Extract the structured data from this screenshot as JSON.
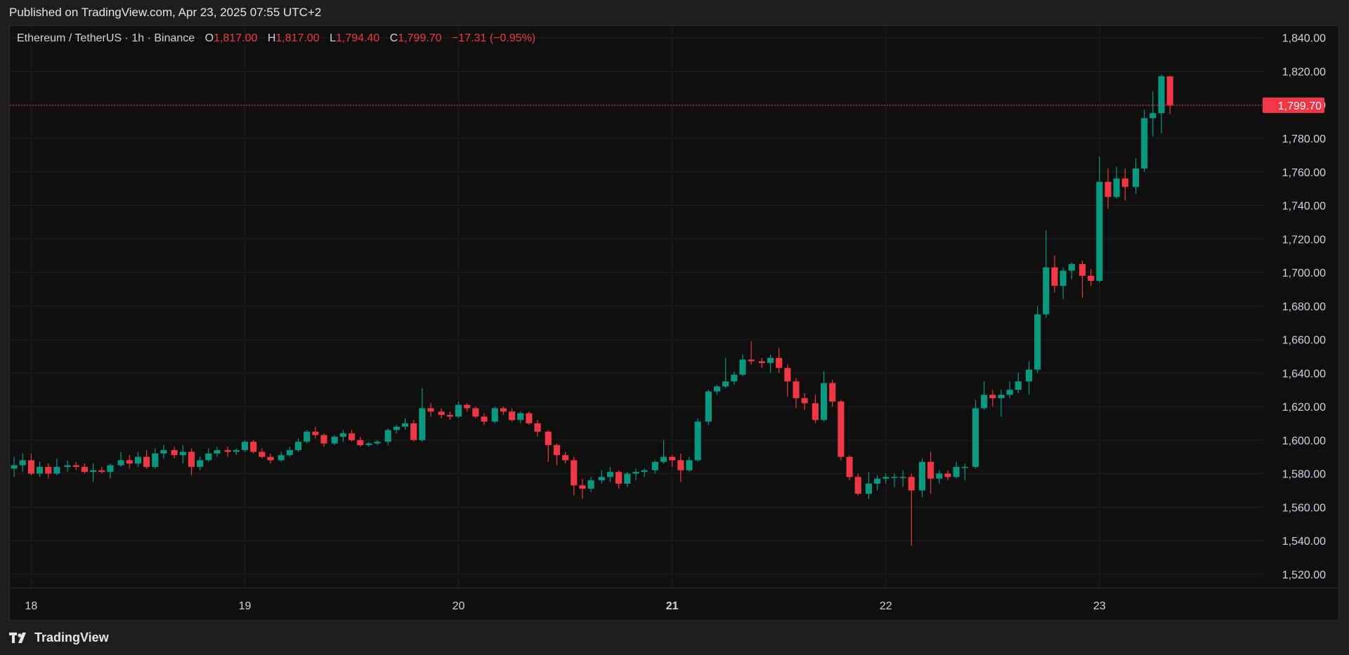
{
  "header": {
    "published": "Published on TradingView.com, Apr 23, 2025 07:55 UTC+2"
  },
  "footer": {
    "brand": "TradingView",
    "logo_icon": "tradingview-logo-icon"
  },
  "legend": {
    "symbol": "Ethereum / TetherUS · 1h · Binance",
    "o_label": "O",
    "o_value": "1,817.00",
    "h_label": "H",
    "h_value": "1,817.00",
    "l_label": "L",
    "l_value": "1,794.40",
    "c_label": "C",
    "c_value": "1,799.70",
    "change": "−17.31 (−0.95%)"
  },
  "price_tag": "1,799.70",
  "colors": {
    "up": "#089981",
    "down": "#f23645",
    "grid": "#1f1f1f",
    "background": "#0f0f0f",
    "axis_text": "#d1d4dc",
    "price_line": "#f23645"
  },
  "chart_data": {
    "type": "candlestick",
    "interval": "1h",
    "x_axis_labels": [
      "18",
      "19",
      "20",
      "21",
      "22",
      "23"
    ],
    "x_axis_bold": "21",
    "y_axis_labels": [
      "1,840.00",
      "1,820.00",
      "1,800.00",
      "1,780.00",
      "1,760.00",
      "1,740.00",
      "1,720.00",
      "1,700.00",
      "1,680.00",
      "1,660.00",
      "1,640.00",
      "1,620.00",
      "1,600.00",
      "1,580.00",
      "1,560.00",
      "1,540.00",
      "1,520.00"
    ],
    "y_range": [
      1512,
      1847
    ],
    "x_range_days": [
      17.9,
      23.77
    ],
    "last_price": 1799.7,
    "candles": [
      {
        "t": 17.92,
        "o": 1583,
        "h": 1590,
        "l": 1578,
        "c": 1585
      },
      {
        "t": 17.96,
        "o": 1585,
        "h": 1592,
        "l": 1581,
        "c": 1588
      },
      {
        "t": 18.0,
        "o": 1588,
        "h": 1592,
        "l": 1579,
        "c": 1580
      },
      {
        "t": 18.04,
        "o": 1580,
        "h": 1587,
        "l": 1578,
        "c": 1584
      },
      {
        "t": 18.08,
        "o": 1584,
        "h": 1586,
        "l": 1577,
        "c": 1580
      },
      {
        "t": 18.12,
        "o": 1580,
        "h": 1589,
        "l": 1579,
        "c": 1584
      },
      {
        "t": 18.17,
        "o": 1584,
        "h": 1588,
        "l": 1581,
        "c": 1585
      },
      {
        "t": 18.21,
        "o": 1585,
        "h": 1587,
        "l": 1582,
        "c": 1584
      },
      {
        "t": 18.25,
        "o": 1584,
        "h": 1586,
        "l": 1580,
        "c": 1581
      },
      {
        "t": 18.29,
        "o": 1581,
        "h": 1586,
        "l": 1575,
        "c": 1582
      },
      {
        "t": 18.33,
        "o": 1582,
        "h": 1584,
        "l": 1580,
        "c": 1581
      },
      {
        "t": 18.37,
        "o": 1581,
        "h": 1586,
        "l": 1577,
        "c": 1585
      },
      {
        "t": 18.42,
        "o": 1585,
        "h": 1593,
        "l": 1584,
        "c": 1588
      },
      {
        "t": 18.46,
        "o": 1588,
        "h": 1591,
        "l": 1583,
        "c": 1586
      },
      {
        "t": 18.5,
        "o": 1586,
        "h": 1593,
        "l": 1584,
        "c": 1590
      },
      {
        "t": 18.54,
        "o": 1590,
        "h": 1594,
        "l": 1583,
        "c": 1584
      },
      {
        "t": 18.58,
        "o": 1584,
        "h": 1595,
        "l": 1583,
        "c": 1592
      },
      {
        "t": 18.62,
        "o": 1592,
        "h": 1597,
        "l": 1589,
        "c": 1594
      },
      {
        "t": 18.67,
        "o": 1594,
        "h": 1596,
        "l": 1589,
        "c": 1591
      },
      {
        "t": 18.71,
        "o": 1591,
        "h": 1597,
        "l": 1586,
        "c": 1593
      },
      {
        "t": 18.75,
        "o": 1593,
        "h": 1595,
        "l": 1579,
        "c": 1584
      },
      {
        "t": 18.79,
        "o": 1584,
        "h": 1590,
        "l": 1582,
        "c": 1588
      },
      {
        "t": 18.83,
        "o": 1588,
        "h": 1595,
        "l": 1587,
        "c": 1592
      },
      {
        "t": 18.87,
        "o": 1592,
        "h": 1596,
        "l": 1590,
        "c": 1594
      },
      {
        "t": 18.92,
        "o": 1594,
        "h": 1596,
        "l": 1590,
        "c": 1593
      },
      {
        "t": 18.96,
        "o": 1593,
        "h": 1595,
        "l": 1591,
        "c": 1594
      },
      {
        "t": 19.0,
        "o": 1594,
        "h": 1600,
        "l": 1593,
        "c": 1599
      },
      {
        "t": 19.04,
        "o": 1599,
        "h": 1600,
        "l": 1592,
        "c": 1593
      },
      {
        "t": 19.08,
        "o": 1593,
        "h": 1595,
        "l": 1589,
        "c": 1590
      },
      {
        "t": 19.12,
        "o": 1590,
        "h": 1592,
        "l": 1586,
        "c": 1588
      },
      {
        "t": 19.17,
        "o": 1588,
        "h": 1593,
        "l": 1587,
        "c": 1591
      },
      {
        "t": 19.21,
        "o": 1591,
        "h": 1596,
        "l": 1590,
        "c": 1594
      },
      {
        "t": 19.25,
        "o": 1594,
        "h": 1601,
        "l": 1593,
        "c": 1599
      },
      {
        "t": 19.29,
        "o": 1599,
        "h": 1606,
        "l": 1598,
        "c": 1605
      },
      {
        "t": 19.33,
        "o": 1605,
        "h": 1608,
        "l": 1601,
        "c": 1603
      },
      {
        "t": 19.37,
        "o": 1603,
        "h": 1604,
        "l": 1596,
        "c": 1598
      },
      {
        "t": 19.42,
        "o": 1598,
        "h": 1603,
        "l": 1597,
        "c": 1602
      },
      {
        "t": 19.46,
        "o": 1602,
        "h": 1606,
        "l": 1599,
        "c": 1604
      },
      {
        "t": 19.5,
        "o": 1604,
        "h": 1606,
        "l": 1599,
        "c": 1600
      },
      {
        "t": 19.54,
        "o": 1600,
        "h": 1602,
        "l": 1596,
        "c": 1597
      },
      {
        "t": 19.58,
        "o": 1597,
        "h": 1599,
        "l": 1596,
        "c": 1598
      },
      {
        "t": 19.62,
        "o": 1598,
        "h": 1600,
        "l": 1597,
        "c": 1599
      },
      {
        "t": 19.67,
        "o": 1599,
        "h": 1607,
        "l": 1597,
        "c": 1606
      },
      {
        "t": 19.71,
        "o": 1606,
        "h": 1609,
        "l": 1604,
        "c": 1608
      },
      {
        "t": 19.75,
        "o": 1608,
        "h": 1613,
        "l": 1606,
        "c": 1610
      },
      {
        "t": 19.79,
        "o": 1610,
        "h": 1612,
        "l": 1599,
        "c": 1600
      },
      {
        "t": 19.83,
        "o": 1600,
        "h": 1631,
        "l": 1599,
        "c": 1619
      },
      {
        "t": 19.87,
        "o": 1619,
        "h": 1622,
        "l": 1614,
        "c": 1617
      },
      {
        "t": 19.92,
        "o": 1617,
        "h": 1619,
        "l": 1613,
        "c": 1615
      },
      {
        "t": 19.96,
        "o": 1615,
        "h": 1617,
        "l": 1612,
        "c": 1614
      },
      {
        "t": 20.0,
        "o": 1614,
        "h": 1623,
        "l": 1613,
        "c": 1621
      },
      {
        "t": 20.04,
        "o": 1621,
        "h": 1622,
        "l": 1617,
        "c": 1619
      },
      {
        "t": 20.08,
        "o": 1619,
        "h": 1620,
        "l": 1613,
        "c": 1614
      },
      {
        "t": 20.12,
        "o": 1614,
        "h": 1616,
        "l": 1609,
        "c": 1611
      },
      {
        "t": 20.17,
        "o": 1611,
        "h": 1620,
        "l": 1610,
        "c": 1619
      },
      {
        "t": 20.21,
        "o": 1619,
        "h": 1620,
        "l": 1615,
        "c": 1617
      },
      {
        "t": 20.25,
        "o": 1617,
        "h": 1619,
        "l": 1611,
        "c": 1612
      },
      {
        "t": 20.29,
        "o": 1612,
        "h": 1617,
        "l": 1610,
        "c": 1616
      },
      {
        "t": 20.33,
        "o": 1616,
        "h": 1617,
        "l": 1609,
        "c": 1610
      },
      {
        "t": 20.37,
        "o": 1610,
        "h": 1612,
        "l": 1602,
        "c": 1605
      },
      {
        "t": 20.42,
        "o": 1605,
        "h": 1606,
        "l": 1587,
        "c": 1597
      },
      {
        "t": 20.46,
        "o": 1597,
        "h": 1598,
        "l": 1585,
        "c": 1591
      },
      {
        "t": 20.5,
        "o": 1591,
        "h": 1593,
        "l": 1586,
        "c": 1588
      },
      {
        "t": 20.54,
        "o": 1588,
        "h": 1590,
        "l": 1567,
        "c": 1573
      },
      {
        "t": 20.58,
        "o": 1573,
        "h": 1577,
        "l": 1565,
        "c": 1571
      },
      {
        "t": 20.62,
        "o": 1571,
        "h": 1578,
        "l": 1569,
        "c": 1576
      },
      {
        "t": 20.67,
        "o": 1576,
        "h": 1582,
        "l": 1574,
        "c": 1578
      },
      {
        "t": 20.71,
        "o": 1578,
        "h": 1584,
        "l": 1575,
        "c": 1581
      },
      {
        "t": 20.75,
        "o": 1581,
        "h": 1582,
        "l": 1571,
        "c": 1574
      },
      {
        "t": 20.79,
        "o": 1574,
        "h": 1581,
        "l": 1572,
        "c": 1580
      },
      {
        "t": 20.83,
        "o": 1580,
        "h": 1583,
        "l": 1576,
        "c": 1581
      },
      {
        "t": 20.87,
        "o": 1581,
        "h": 1583,
        "l": 1578,
        "c": 1582
      },
      {
        "t": 20.92,
        "o": 1582,
        "h": 1588,
        "l": 1580,
        "c": 1587
      },
      {
        "t": 20.96,
        "o": 1587,
        "h": 1600,
        "l": 1586,
        "c": 1590
      },
      {
        "t": 21.0,
        "o": 1590,
        "h": 1591,
        "l": 1584,
        "c": 1588
      },
      {
        "t": 21.04,
        "o": 1588,
        "h": 1592,
        "l": 1575,
        "c": 1582
      },
      {
        "t": 21.08,
        "o": 1582,
        "h": 1590,
        "l": 1581,
        "c": 1588
      },
      {
        "t": 21.12,
        "o": 1588,
        "h": 1613,
        "l": 1587,
        "c": 1611
      },
      {
        "t": 21.17,
        "o": 1611,
        "h": 1630,
        "l": 1609,
        "c": 1629
      },
      {
        "t": 21.21,
        "o": 1629,
        "h": 1633,
        "l": 1627,
        "c": 1632
      },
      {
        "t": 21.25,
        "o": 1632,
        "h": 1649,
        "l": 1631,
        "c": 1635
      },
      {
        "t": 21.29,
        "o": 1635,
        "h": 1641,
        "l": 1633,
        "c": 1639
      },
      {
        "t": 21.33,
        "o": 1639,
        "h": 1651,
        "l": 1638,
        "c": 1648
      },
      {
        "t": 21.37,
        "o": 1648,
        "h": 1659,
        "l": 1645,
        "c": 1647
      },
      {
        "t": 21.42,
        "o": 1647,
        "h": 1649,
        "l": 1643,
        "c": 1646
      },
      {
        "t": 21.46,
        "o": 1646,
        "h": 1651,
        "l": 1640,
        "c": 1649
      },
      {
        "t": 21.5,
        "o": 1649,
        "h": 1655,
        "l": 1640,
        "c": 1643
      },
      {
        "t": 21.54,
        "o": 1643,
        "h": 1645,
        "l": 1626,
        "c": 1635
      },
      {
        "t": 21.58,
        "o": 1635,
        "h": 1637,
        "l": 1619,
        "c": 1625
      },
      {
        "t": 21.62,
        "o": 1625,
        "h": 1628,
        "l": 1618,
        "c": 1622
      },
      {
        "t": 21.67,
        "o": 1622,
        "h": 1627,
        "l": 1610,
        "c": 1612
      },
      {
        "t": 21.71,
        "o": 1612,
        "h": 1641,
        "l": 1611,
        "c": 1634
      },
      {
        "t": 21.75,
        "o": 1634,
        "h": 1636,
        "l": 1620,
        "c": 1623
      },
      {
        "t": 21.79,
        "o": 1623,
        "h": 1624,
        "l": 1588,
        "c": 1590
      },
      {
        "t": 21.83,
        "o": 1590,
        "h": 1591,
        "l": 1576,
        "c": 1578
      },
      {
        "t": 21.87,
        "o": 1578,
        "h": 1580,
        "l": 1567,
        "c": 1568
      },
      {
        "t": 21.92,
        "o": 1568,
        "h": 1581,
        "l": 1565,
        "c": 1574
      },
      {
        "t": 21.96,
        "o": 1574,
        "h": 1579,
        "l": 1570,
        "c": 1577
      },
      {
        "t": 22.0,
        "o": 1577,
        "h": 1580,
        "l": 1574,
        "c": 1578
      },
      {
        "t": 22.04,
        "o": 1578,
        "h": 1580,
        "l": 1572,
        "c": 1578
      },
      {
        "t": 22.08,
        "o": 1578,
        "h": 1582,
        "l": 1572,
        "c": 1578
      },
      {
        "t": 22.12,
        "o": 1578,
        "h": 1580,
        "l": 1537,
        "c": 1570
      },
      {
        "t": 22.17,
        "o": 1570,
        "h": 1589,
        "l": 1566,
        "c": 1587
      },
      {
        "t": 22.21,
        "o": 1587,
        "h": 1593,
        "l": 1568,
        "c": 1577
      },
      {
        "t": 22.25,
        "o": 1577,
        "h": 1582,
        "l": 1574,
        "c": 1580
      },
      {
        "t": 22.29,
        "o": 1580,
        "h": 1582,
        "l": 1576,
        "c": 1578
      },
      {
        "t": 22.33,
        "o": 1578,
        "h": 1587,
        "l": 1577,
        "c": 1584
      },
      {
        "t": 22.37,
        "o": 1584,
        "h": 1586,
        "l": 1576,
        "c": 1584
      },
      {
        "t": 22.42,
        "o": 1584,
        "h": 1624,
        "l": 1583,
        "c": 1619
      },
      {
        "t": 22.46,
        "o": 1619,
        "h": 1635,
        "l": 1618,
        "c": 1627
      },
      {
        "t": 22.5,
        "o": 1627,
        "h": 1630,
        "l": 1620,
        "c": 1625
      },
      {
        "t": 22.54,
        "o": 1625,
        "h": 1630,
        "l": 1614,
        "c": 1627
      },
      {
        "t": 22.58,
        "o": 1627,
        "h": 1635,
        "l": 1625,
        "c": 1630
      },
      {
        "t": 22.62,
        "o": 1630,
        "h": 1640,
        "l": 1628,
        "c": 1635
      },
      {
        "t": 22.67,
        "o": 1635,
        "h": 1647,
        "l": 1627,
        "c": 1642
      },
      {
        "t": 22.71,
        "o": 1642,
        "h": 1680,
        "l": 1640,
        "c": 1675
      },
      {
        "t": 22.75,
        "o": 1675,
        "h": 1725,
        "l": 1673,
        "c": 1703
      },
      {
        "t": 22.79,
        "o": 1703,
        "h": 1710,
        "l": 1688,
        "c": 1692
      },
      {
        "t": 22.83,
        "o": 1692,
        "h": 1703,
        "l": 1684,
        "c": 1701
      },
      {
        "t": 22.87,
        "o": 1701,
        "h": 1706,
        "l": 1696,
        "c": 1705
      },
      {
        "t": 22.92,
        "o": 1705,
        "h": 1707,
        "l": 1685,
        "c": 1698
      },
      {
        "t": 22.96,
        "o": 1698,
        "h": 1702,
        "l": 1692,
        "c": 1695
      },
      {
        "t": 23.0,
        "o": 1695,
        "h": 1769,
        "l": 1694,
        "c": 1754
      },
      {
        "t": 23.04,
        "o": 1754,
        "h": 1762,
        "l": 1738,
        "c": 1745
      },
      {
        "t": 23.08,
        "o": 1745,
        "h": 1763,
        "l": 1744,
        "c": 1756
      },
      {
        "t": 23.12,
        "o": 1756,
        "h": 1762,
        "l": 1743,
        "c": 1751
      },
      {
        "t": 23.17,
        "o": 1751,
        "h": 1768,
        "l": 1747,
        "c": 1762
      },
      {
        "t": 23.21,
        "o": 1762,
        "h": 1797,
        "l": 1760,
        "c": 1792
      },
      {
        "t": 23.25,
        "o": 1792,
        "h": 1808,
        "l": 1781,
        "c": 1795
      },
      {
        "t": 23.29,
        "o": 1795,
        "h": 1818,
        "l": 1783,
        "c": 1817
      },
      {
        "t": 23.33,
        "o": 1817,
        "h": 1817,
        "l": 1794.4,
        "c": 1799.7
      }
    ]
  }
}
